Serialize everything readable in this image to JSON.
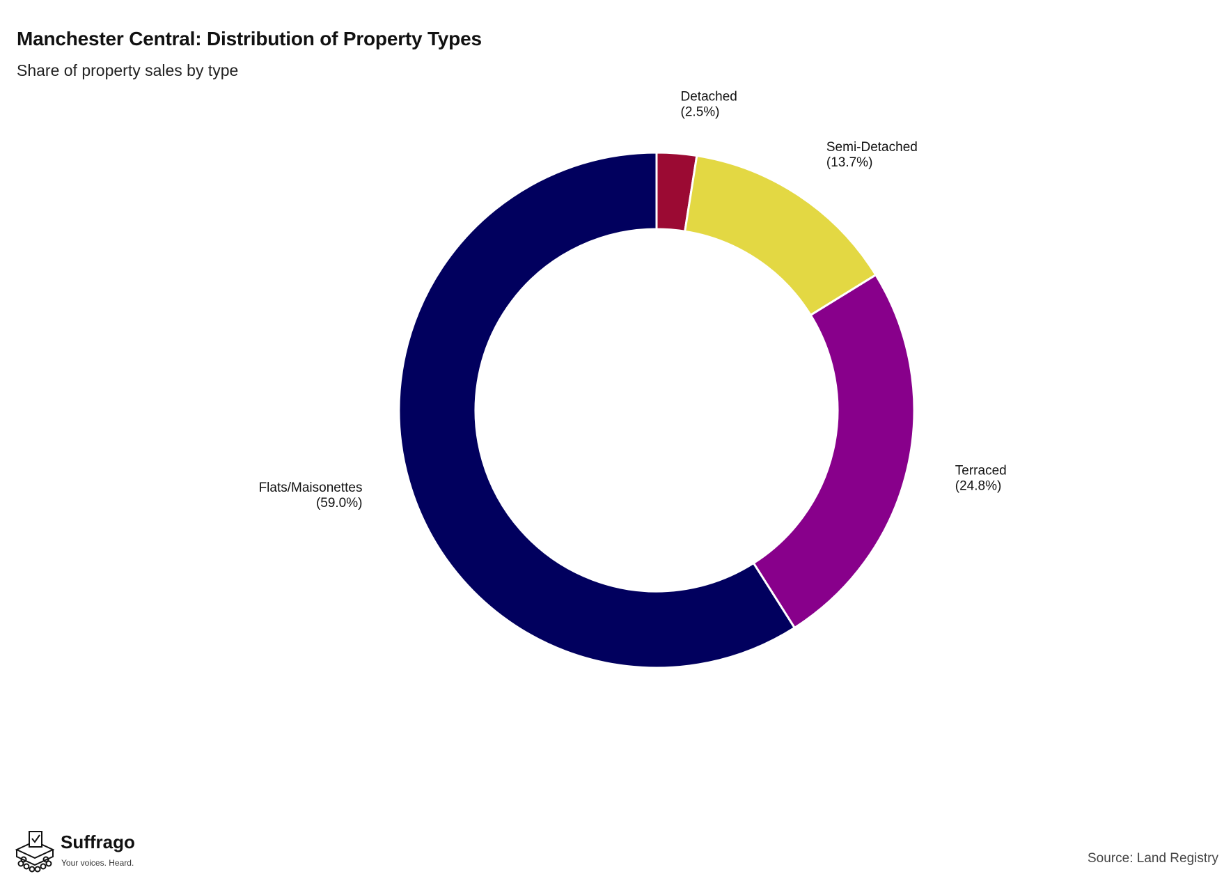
{
  "title": "Manchester Central: Distribution of Property Types",
  "subtitle": "Share of property sales by type",
  "source": "Source: Land Registry",
  "brand": {
    "name": "Suffrago",
    "tagline": "Your voices. Heard.",
    "logo_icon": "ballot-box-icon"
  },
  "chart_data": {
    "type": "pie",
    "style": "donut",
    "title": "Manchester Central: Distribution of Property Types",
    "subtitle": "Share of property sales by type",
    "start_angle_deg": 0,
    "direction": "clockwise",
    "slices": [
      {
        "label": "Detached",
        "value": 2.5,
        "value_label": "(2.5%)",
        "color": "#9b0a33"
      },
      {
        "label": "Semi-Detached",
        "value": 13.7,
        "value_label": "(13.7%)",
        "color": "#e3d843"
      },
      {
        "label": "Terraced",
        "value": 24.8,
        "value_label": "(24.8%)",
        "color": "#88008b"
      },
      {
        "label": "Flats/Maisonettes",
        "value": 59.0,
        "value_label": "(59.0%)",
        "color": "#01005e"
      }
    ]
  }
}
